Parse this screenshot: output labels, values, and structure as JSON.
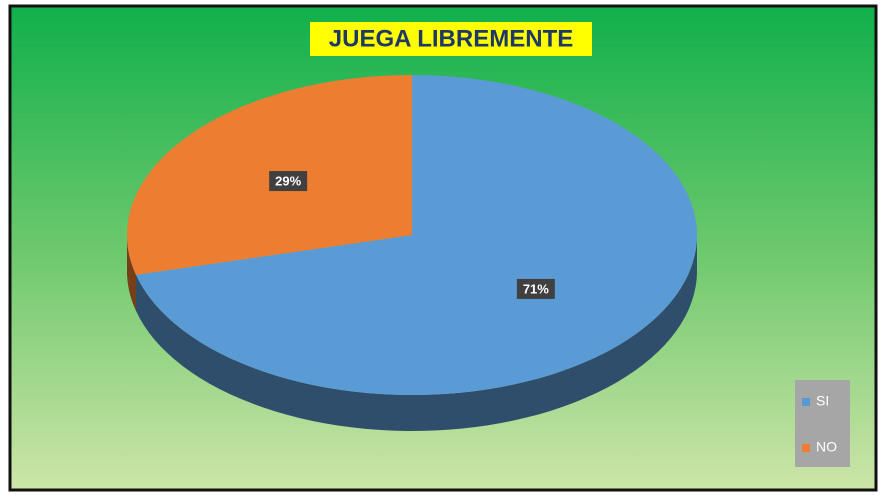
{
  "chart_data": {
    "type": "pie",
    "title": "JUEGA LIBREMENTE",
    "categories": [
      "SI",
      "NO"
    ],
    "values": [
      71,
      29
    ],
    "value_labels": [
      "71%",
      "29%"
    ],
    "colors": [
      "#5b9bd5",
      "#ed7d31"
    ],
    "legend": "bottom-right"
  }
}
